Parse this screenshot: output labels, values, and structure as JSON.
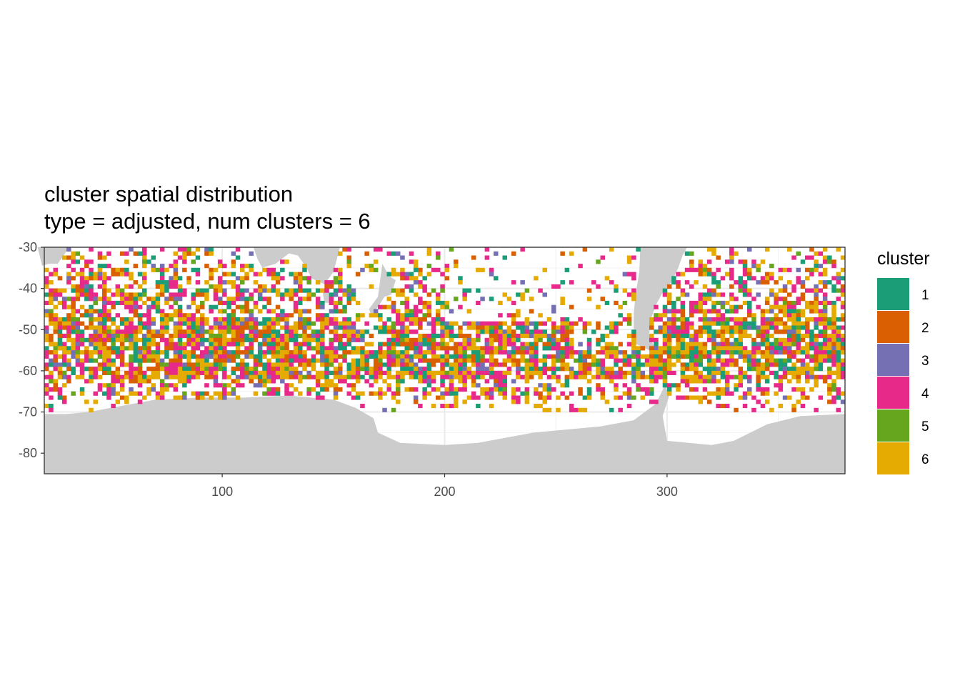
{
  "chart_data": {
    "type": "heatmap",
    "title": "cluster spatial distribution",
    "subtitle": "type = adjusted, num clusters = 6",
    "xlabel": "",
    "ylabel": "",
    "xlim": [
      20,
      380
    ],
    "ylim": [
      -85,
      -30
    ],
    "x_ticks": [
      100,
      200,
      300
    ],
    "y_ticks": [
      -30,
      -40,
      -50,
      -60,
      -70,
      -80
    ],
    "x_tick_labels": [
      "100",
      "200",
      "300"
    ],
    "y_tick_labels": [
      "-30",
      "-40",
      "-50",
      "-60",
      "-70",
      "-80"
    ],
    "grid": true,
    "legend": {
      "title": "cluster",
      "placement": "right",
      "entries": [
        {
          "label": "1",
          "color": "#1B9E77"
        },
        {
          "label": "2",
          "color": "#D95F02"
        },
        {
          "label": "3",
          "color": "#7570B3"
        },
        {
          "label": "4",
          "color": "#E7298A"
        },
        {
          "label": "5",
          "color": "#66A61E"
        },
        {
          "label": "6",
          "color": "#E6AB02"
        }
      ]
    },
    "cell_size_deg": [
      2,
      1
    ],
    "land_color": "#CCCCCC",
    "land_regions": [
      {
        "name": "Antarctica",
        "outline": [
          [
            20,
            -70.5
          ],
          [
            30,
            -70.5
          ],
          [
            40,
            -70
          ],
          [
            55,
            -68.5
          ],
          [
            70,
            -67
          ],
          [
            90,
            -66.5
          ],
          [
            110,
            -66.5
          ],
          [
            130,
            -66
          ],
          [
            150,
            -67
          ],
          [
            160,
            -69
          ],
          [
            168,
            -71.5
          ],
          [
            170,
            -75
          ],
          [
            180,
            -77.5
          ],
          [
            200,
            -78
          ],
          [
            215,
            -77.5
          ],
          [
            240,
            -75
          ],
          [
            270,
            -73.5
          ],
          [
            285,
            -72
          ],
          [
            295,
            -68
          ],
          [
            299,
            -63.5
          ],
          [
            301,
            -66
          ],
          [
            298,
            -71
          ],
          [
            300,
            -77
          ],
          [
            320,
            -78
          ],
          [
            330,
            -77
          ],
          [
            345,
            -73
          ],
          [
            360,
            -71
          ],
          [
            380,
            -70.5
          ],
          [
            380,
            -85
          ],
          [
            20,
            -85
          ]
        ]
      },
      {
        "name": "Australia",
        "outline": [
          [
            114,
            -30
          ],
          [
            116,
            -33
          ],
          [
            118,
            -35
          ],
          [
            124,
            -34
          ],
          [
            130,
            -31.5
          ],
          [
            134,
            -32
          ],
          [
            138,
            -35
          ],
          [
            140,
            -37.5
          ],
          [
            146,
            -39
          ],
          [
            150,
            -36
          ],
          [
            152,
            -32
          ],
          [
            153,
            -30
          ]
        ]
      },
      {
        "name": "Tasmania",
        "outline": [
          [
            145,
            -40.5
          ],
          [
            148,
            -40.5
          ],
          [
            148,
            -43.5
          ],
          [
            146,
            -43.5
          ]
        ]
      },
      {
        "name": "New Zealand",
        "outline": [
          [
            172,
            -34
          ],
          [
            175,
            -37
          ],
          [
            178,
            -38
          ],
          [
            176,
            -41.5
          ],
          [
            173,
            -42
          ],
          [
            170,
            -44.5
          ],
          [
            167,
            -46.5
          ],
          [
            166,
            -45
          ],
          [
            170,
            -42
          ]
        ]
      },
      {
        "name": "South America",
        "outline": [
          [
            288,
            -30
          ],
          [
            287.5,
            -36
          ],
          [
            286,
            -41
          ],
          [
            285,
            -46
          ],
          [
            285,
            -50
          ],
          [
            286,
            -53.5
          ],
          [
            292,
            -55
          ],
          [
            294,
            -54
          ],
          [
            292,
            -51
          ],
          [
            293,
            -47
          ],
          [
            295,
            -44
          ],
          [
            298,
            -41
          ],
          [
            302,
            -38.5
          ],
          [
            305,
            -35
          ],
          [
            307,
            -32
          ],
          [
            309,
            -30
          ]
        ]
      },
      {
        "name": "Africa",
        "outline": [
          [
            17,
            -30
          ],
          [
            19,
            -34.5
          ],
          [
            22,
            -34
          ],
          [
            26,
            -34
          ],
          [
            30,
            -31
          ],
          [
            31,
            -30
          ]
        ]
      }
    ]
  }
}
